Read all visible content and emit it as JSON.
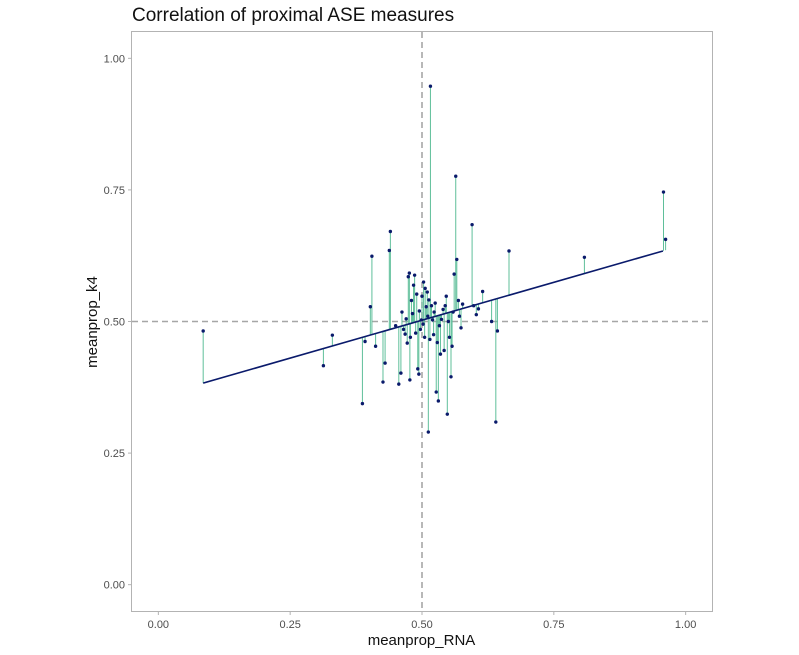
{
  "chart_data": {
    "type": "scatter",
    "title": "Correlation of proximal ASE measures",
    "xlabel": "meanprop_RNA",
    "ylabel": "meanprop_k4",
    "xlim": [
      -0.05,
      1.05
    ],
    "ylim": [
      -0.05,
      1.05
    ],
    "x_ticks": [
      "0.00",
      "0.25",
      "0.50",
      "0.75",
      "1.00"
    ],
    "y_ticks": [
      "0.00",
      "0.25",
      "0.50",
      "0.75",
      "1.00"
    ],
    "reference_lines": {
      "x": 0.5,
      "y": 0.5,
      "style": "dashed",
      "color": "#a6a6a6"
    },
    "fit_line": {
      "x": [
        0.085,
        0.957
      ],
      "y": [
        0.383,
        0.634
      ],
      "color": "#0a1a6b"
    },
    "residual_color": "#5fbf9a",
    "point_color": "#0a1a6b",
    "grid": false,
    "points": [
      [
        0.085,
        0.482
      ],
      [
        0.313,
        0.416
      ],
      [
        0.33,
        0.474
      ],
      [
        0.387,
        0.344
      ],
      [
        0.392,
        0.462
      ],
      [
        0.402,
        0.528
      ],
      [
        0.405,
        0.624
      ],
      [
        0.412,
        0.453
      ],
      [
        0.426,
        0.385
      ],
      [
        0.43,
        0.421
      ],
      [
        0.438,
        0.635
      ],
      [
        0.44,
        0.671
      ],
      [
        0.45,
        0.492
      ],
      [
        0.456,
        0.381
      ],
      [
        0.46,
        0.402
      ],
      [
        0.462,
        0.518
      ],
      [
        0.465,
        0.485
      ],
      [
        0.468,
        0.476
      ],
      [
        0.47,
        0.505
      ],
      [
        0.472,
        0.459
      ],
      [
        0.474,
        0.585
      ],
      [
        0.476,
        0.592
      ],
      [
        0.477,
        0.389
      ],
      [
        0.478,
        0.47
      ],
      [
        0.48,
        0.54
      ],
      [
        0.482,
        0.515
      ],
      [
        0.484,
        0.569
      ],
      [
        0.486,
        0.588
      ],
      [
        0.488,
        0.478
      ],
      [
        0.49,
        0.552
      ],
      [
        0.492,
        0.41
      ],
      [
        0.494,
        0.4
      ],
      [
        0.495,
        0.52
      ],
      [
        0.497,
        0.485
      ],
      [
        0.499,
        0.503
      ],
      [
        0.5,
        0.548
      ],
      [
        0.502,
        0.495
      ],
      [
        0.503,
        0.575
      ],
      [
        0.505,
        0.47
      ],
      [
        0.506,
        0.563
      ],
      [
        0.508,
        0.528
      ],
      [
        0.51,
        0.556
      ],
      [
        0.511,
        0.51
      ],
      [
        0.512,
        0.29
      ],
      [
        0.513,
        0.541
      ],
      [
        0.515,
        0.466
      ],
      [
        0.516,
        0.947
      ],
      [
        0.518,
        0.53
      ],
      [
        0.52,
        0.503
      ],
      [
        0.522,
        0.475
      ],
      [
        0.523,
        0.518
      ],
      [
        0.525,
        0.535
      ],
      [
        0.527,
        0.366
      ],
      [
        0.529,
        0.46
      ],
      [
        0.531,
        0.349
      ],
      [
        0.533,
        0.492
      ],
      [
        0.535,
        0.438
      ],
      [
        0.537,
        0.504
      ],
      [
        0.54,
        0.523
      ],
      [
        0.542,
        0.445
      ],
      [
        0.544,
        0.53
      ],
      [
        0.546,
        0.548
      ],
      [
        0.548,
        0.324
      ],
      [
        0.55,
        0.5
      ],
      [
        0.552,
        0.47
      ],
      [
        0.555,
        0.395
      ],
      [
        0.557,
        0.453
      ],
      [
        0.559,
        0.518
      ],
      [
        0.561,
        0.59
      ],
      [
        0.564,
        0.776
      ],
      [
        0.566,
        0.618
      ],
      [
        0.569,
        0.54
      ],
      [
        0.571,
        0.51
      ],
      [
        0.574,
        0.488
      ],
      [
        0.577,
        0.533
      ],
      [
        0.595,
        0.684
      ],
      [
        0.598,
        0.53
      ],
      [
        0.603,
        0.513
      ],
      [
        0.607,
        0.524
      ],
      [
        0.615,
        0.557
      ],
      [
        0.632,
        0.5
      ],
      [
        0.64,
        0.309
      ],
      [
        0.643,
        0.482
      ],
      [
        0.665,
        0.634
      ],
      [
        0.808,
        0.622
      ],
      [
        0.958,
        0.746
      ],
      [
        0.962,
        0.656
      ]
    ]
  }
}
